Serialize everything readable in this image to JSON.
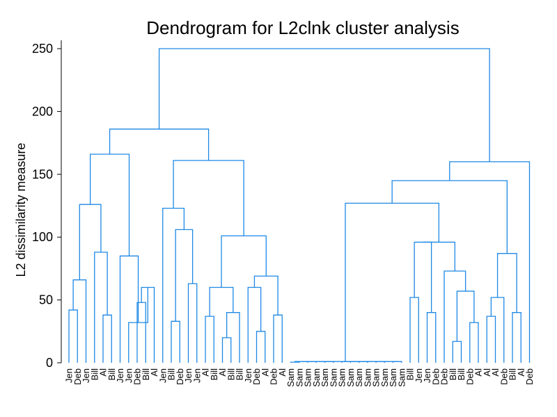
{
  "chart_data": {
    "type": "dendrogram",
    "title": "Dendrogram for L2clnk cluster analysis",
    "ylabel": "L2 dissimilarity measure",
    "ylim": [
      0,
      250
    ],
    "yticks": [
      0,
      50,
      100,
      150,
      200,
      250
    ],
    "leaves": [
      "Jen",
      "Deb",
      "Jen",
      "Bill",
      "Al",
      "Bill",
      "Jen",
      "Jen",
      "Deb",
      "Bill",
      "Al",
      "Jen",
      "Bill",
      "Deb",
      "Jen",
      "Jen",
      "Al",
      "Bill",
      "Al",
      "Bill",
      "Bill",
      "Jen",
      "Deb",
      "Al",
      "Deb",
      "Al",
      "Sam",
      "Sam",
      "Sam",
      "Sam",
      "Sam",
      "Sam",
      "Sam",
      "Sam",
      "Sam",
      "Sam",
      "Sam",
      "Sam",
      "Sam",
      "Sam",
      "Bill",
      "Jen",
      "Jen",
      "Deb",
      "Deb",
      "Bill",
      "Bill",
      "Deb",
      "Al",
      "Al",
      "Al",
      "Deb",
      "Bill",
      "Al",
      "Deb"
    ],
    "merges": [
      {
        "id": "c1",
        "children": [
          0,
          1
        ],
        "height": 42
      },
      {
        "id": "c2",
        "children": [
          "c1",
          2
        ],
        "height": 66
      },
      {
        "id": "c3",
        "children": [
          4,
          5
        ],
        "height": 38
      },
      {
        "id": "c4",
        "children": [
          3,
          "c3"
        ],
        "height": 88
      },
      {
        "id": "c5",
        "children": [
          "c2",
          "c4"
        ],
        "height": 126
      },
      {
        "id": "c6",
        "children": [
          8,
          9
        ],
        "height": 48
      },
      {
        "id": "c7",
        "children": [
          "c6",
          10
        ],
        "height": 60
      },
      {
        "id": "c8",
        "children": [
          7,
          "c7"
        ],
        "height": 32
      },
      {
        "id": "c9",
        "children": [
          6,
          "c8"
        ],
        "height": 85
      },
      {
        "id": "c10",
        "children": [
          "c5",
          "c9"
        ],
        "height": 166
      },
      {
        "id": "c11",
        "children": [
          12,
          13
        ],
        "height": 33
      },
      {
        "id": "c12",
        "children": [
          14,
          15
        ],
        "height": 63
      },
      {
        "id": "c13",
        "children": [
          "c11",
          "c12"
        ],
        "height": 106
      },
      {
        "id": "c14",
        "children": [
          11,
          "c13"
        ],
        "height": 123
      },
      {
        "id": "c15",
        "children": [
          18,
          19
        ],
        "height": 20
      },
      {
        "id": "c16",
        "children": [
          "c15",
          20
        ],
        "height": 40
      },
      {
        "id": "c17",
        "children": [
          16,
          17
        ],
        "height": 37
      },
      {
        "id": "c18",
        "children": [
          "c17",
          "c16"
        ],
        "height": 60
      },
      {
        "id": "c19",
        "children": [
          22,
          23
        ],
        "height": 25
      },
      {
        "id": "c20",
        "children": [
          21,
          "c19"
        ],
        "height": 60
      },
      {
        "id": "c21",
        "children": [
          24,
          25
        ],
        "height": 38
      },
      {
        "id": "c22",
        "children": [
          "c20",
          "c21"
        ],
        "height": 69
      },
      {
        "id": "c23",
        "children": [
          "c18",
          "c22"
        ],
        "height": 101
      },
      {
        "id": "c24",
        "children": [
          "c14",
          "c23"
        ],
        "height": 161
      },
      {
        "id": "c25",
        "children": [
          "c10",
          "c24"
        ],
        "height": 186
      },
      {
        "id": "c26",
        "children": [
          26,
          27
        ],
        "height": 0.5
      },
      {
        "id": "c27",
        "children": [
          "c26",
          28
        ],
        "height": 1
      },
      {
        "id": "c28",
        "children": [
          "c27",
          29
        ],
        "height": 1
      },
      {
        "id": "c29",
        "children": [
          30,
          31
        ],
        "height": 1
      },
      {
        "id": "c30",
        "children": [
          "c28",
          "c29"
        ],
        "height": 1
      },
      {
        "id": "c31",
        "children": [
          32,
          33
        ],
        "height": 1
      },
      {
        "id": "c32",
        "children": [
          34,
          35
        ],
        "height": 1
      },
      {
        "id": "c33",
        "children": [
          "c31",
          "c32"
        ],
        "height": 1
      },
      {
        "id": "c34",
        "children": [
          36,
          37
        ],
        "height": 1
      },
      {
        "id": "c35",
        "children": [
          38,
          39
        ],
        "height": 1
      },
      {
        "id": "c36",
        "children": [
          "c34",
          "c35"
        ],
        "height": 1
      },
      {
        "id": "c37",
        "children": [
          "c33",
          "c36"
        ],
        "height": 1
      },
      {
        "id": "c38",
        "children": [
          "c30",
          "c37"
        ],
        "height": 1
      },
      {
        "id": "c39",
        "children": [
          40,
          41
        ],
        "height": 52
      },
      {
        "id": "c40",
        "children": [
          42,
          43
        ],
        "height": 40
      },
      {
        "id": "c41",
        "children": [
          "c39",
          "c40"
        ],
        "height": 96
      },
      {
        "id": "c42",
        "children": [
          45,
          46
        ],
        "height": 17
      },
      {
        "id": "c43",
        "children": [
          47,
          48
        ],
        "height": 32
      },
      {
        "id": "c44",
        "children": [
          "c42",
          "c43"
        ],
        "height": 57
      },
      {
        "id": "c45",
        "children": [
          44,
          "c44"
        ],
        "height": 73
      },
      {
        "id": "c46",
        "children": [
          "c41",
          "c45"
        ],
        "height": 96
      },
      {
        "id": "c47",
        "children": [
          "c38",
          "c46"
        ],
        "height": 127
      },
      {
        "id": "c48",
        "children": [
          49,
          50
        ],
        "height": 37
      },
      {
        "id": "c49",
        "children": [
          "c48",
          51
        ],
        "height": 52
      },
      {
        "id": "c50",
        "children": [
          52,
          53
        ],
        "height": 40
      },
      {
        "id": "c51",
        "children": [
          "c49",
          "c50"
        ],
        "height": 87
      },
      {
        "id": "c52",
        "children": [
          "c47",
          "c51"
        ],
        "height": 145
      },
      {
        "id": "c53",
        "children": [
          "c52",
          54
        ],
        "height": 160
      },
      {
        "id": "c54",
        "children": [
          "c25",
          "c53"
        ],
        "height": 250
      }
    ],
    "line_color": "#1e88e5"
  }
}
